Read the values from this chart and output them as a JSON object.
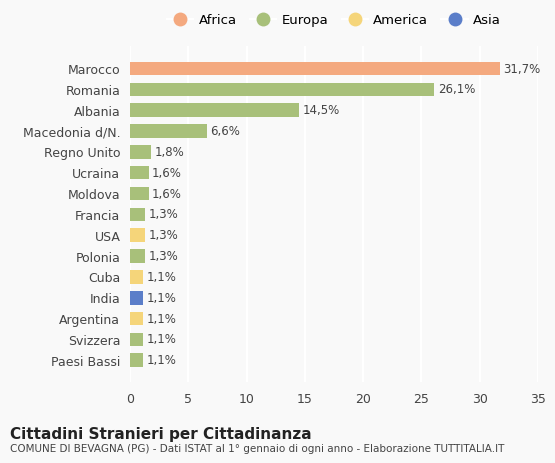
{
  "countries": [
    "Paesi Bassi",
    "Svizzera",
    "Argentina",
    "India",
    "Cuba",
    "Polonia",
    "USA",
    "Francia",
    "Moldova",
    "Ucraina",
    "Regno Unito",
    "Macedonia d/N.",
    "Albania",
    "Romania",
    "Marocco"
  ],
  "values": [
    1.1,
    1.1,
    1.1,
    1.1,
    1.1,
    1.3,
    1.3,
    1.3,
    1.6,
    1.6,
    1.8,
    6.6,
    14.5,
    26.1,
    31.7
  ],
  "labels": [
    "1,1%",
    "1,1%",
    "1,1%",
    "1,1%",
    "1,1%",
    "1,3%",
    "1,3%",
    "1,3%",
    "1,6%",
    "1,6%",
    "1,8%",
    "6,6%",
    "14,5%",
    "26,1%",
    "31,7%"
  ],
  "continent_colors": {
    "Africa": "#F4A97F",
    "Europa": "#A8C07A",
    "America": "#F5D57A",
    "Asia": "#5B7EC9"
  },
  "bar_colors": [
    "#A8C07A",
    "#A8C07A",
    "#F5D57A",
    "#5B7EC9",
    "#F5D57A",
    "#A8C07A",
    "#F5D57A",
    "#A8C07A",
    "#A8C07A",
    "#A8C07A",
    "#A8C07A",
    "#A8C07A",
    "#A8C07A",
    "#A8C07A",
    "#F4A97F"
  ],
  "title": "Cittadini Stranieri per Cittadinanza",
  "subtitle": "COMUNE DI BEVAGNA (PG) - Dati ISTAT al 1° gennaio di ogni anno - Elaborazione TUTTITALIA.IT",
  "xlim": [
    0,
    35
  ],
  "xticks": [
    0,
    5,
    10,
    15,
    20,
    25,
    30,
    35
  ],
  "background_color": "#f9f9f9",
  "grid_color": "#ffffff",
  "legend_items": [
    "Africa",
    "Europa",
    "America",
    "Asia"
  ]
}
